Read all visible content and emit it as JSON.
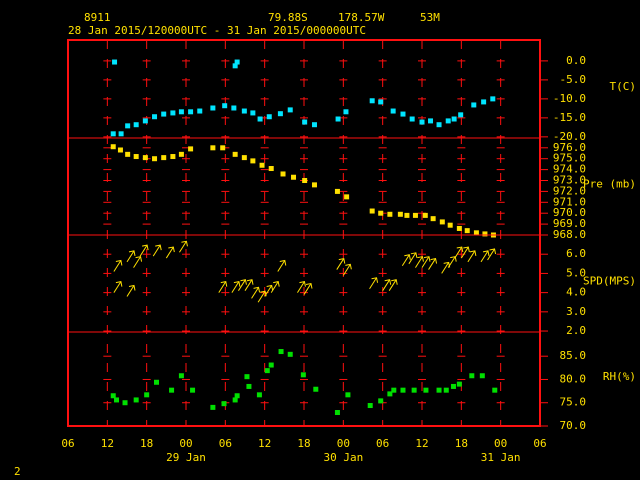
{
  "header": {
    "station": "8911",
    "latitude": "79.88S",
    "longitude": "178.57W",
    "elevation": "53M",
    "period": "28 Jan 2015/120000UTC - 31 Jan 2015/000000UTC",
    "page": "2"
  },
  "x_axis": {
    "xlim": [
      6,
      78
    ],
    "xticks": [
      {
        "value": 6,
        "label": "06"
      },
      12,
      18,
      {
        "value": 24,
        "label": "00"
      },
      {
        "value": 30,
        "label": "06"
      },
      {
        "value": 36,
        "label": "12"
      },
      {
        "value": 42,
        "label": "18"
      },
      {
        "value": 48,
        "label": "00"
      },
      {
        "value": 54,
        "label": "06"
      },
      {
        "value": 60,
        "label": "12"
      },
      {
        "value": 66,
        "label": "18"
      },
      {
        "value": 72,
        "label": "00"
      },
      {
        "value": 78,
        "label": "06"
      }
    ],
    "date_labels": [
      {
        "value": 24,
        "label": "29 Jan"
      },
      {
        "value": 48,
        "label": "30 Jan"
      },
      {
        "value": 72,
        "label": "31 Jan"
      }
    ]
  },
  "chart_data": [
    {
      "type": "scatter",
      "marker": "square",
      "color": "#00e5ff",
      "y_label": "T(C)",
      "ylim": [
        -20.3,
        5.5
      ],
      "yticks": [
        {
          "value": 0,
          "label": "0.0"
        },
        {
          "value": -5,
          "label": "-5.0"
        },
        {
          "value": -10,
          "label": "-10.0"
        },
        {
          "value": -15,
          "label": "-15.0"
        },
        {
          "value": -20,
          "label": "-20.0"
        }
      ],
      "x": [
        12.9,
        13.1,
        14.1,
        15.1,
        16.4,
        17.8,
        19.2,
        20.6,
        22.0,
        23.3,
        24.7,
        26.1,
        28.1,
        29.9,
        31.3,
        31.5,
        31.8,
        32.9,
        34.2,
        35.3,
        36.7,
        38.4,
        39.9,
        42.1,
        43.6,
        47.2,
        48.4,
        52.4,
        53.7,
        55.6,
        57.1,
        58.5,
        60.0,
        61.3,
        62.6,
        64.0,
        64.9,
        65.9,
        67.9,
        69.4,
        70.8
      ],
      "values": [
        -19.2,
        -0.3,
        -19.2,
        -17.1,
        -16.8,
        -15.8,
        -14.7,
        -14.0,
        -13.7,
        -13.4,
        -13.4,
        -13.2,
        -12.4,
        -11.8,
        -12.4,
        -1.3,
        -0.3,
        -13.2,
        -13.7,
        -15.3,
        -14.7,
        -13.9,
        -12.9,
        -16.1,
        -16.8,
        -15.3,
        -13.4,
        -10.5,
        -10.8,
        -13.2,
        -14.0,
        -15.3,
        -16.1,
        -15.8,
        -16.8,
        -15.8,
        -15.3,
        -14.2,
        -11.6,
        -10.8,
        -10.0
      ]
    },
    {
      "type": "scatter",
      "marker": "square",
      "color": "#ffe000",
      "y_label": "Pre (mb)",
      "ylim": [
        968.0,
        976.9
      ],
      "yticks": [
        {
          "value": 976,
          "label": "976.0"
        },
        {
          "value": 975,
          "label": "975.0"
        },
        {
          "value": 974,
          "label": "974.0"
        },
        {
          "value": 973,
          "label": "973.0"
        },
        {
          "value": 972,
          "label": "972.0"
        },
        {
          "value": 971,
          "label": "971.0"
        },
        {
          "value": 970,
          "label": "970.0"
        },
        {
          "value": 969,
          "label": "969.0"
        },
        {
          "value": 968,
          "label": "968.0"
        }
      ],
      "x": [
        12.9,
        14.0,
        15.1,
        16.4,
        17.8,
        19.2,
        20.6,
        22.0,
        23.3,
        24.7,
        28.1,
        29.6,
        31.5,
        32.9,
        34.2,
        35.6,
        37.0,
        38.8,
        40.4,
        42.1,
        43.6,
        47.1,
        48.5,
        52.4,
        53.7,
        55.1,
        56.7,
        57.7,
        59.0,
        60.5,
        61.7,
        63.1,
        64.3,
        65.7,
        66.9,
        68.3,
        69.6,
        70.9
      ],
      "values": [
        976.1,
        975.8,
        975.4,
        975.2,
        975.1,
        975.0,
        975.1,
        975.2,
        975.4,
        975.9,
        976.0,
        976.0,
        975.4,
        975.1,
        974.8,
        974.4,
        974.1,
        973.6,
        973.3,
        973.0,
        972.6,
        972.0,
        971.5,
        970.2,
        970.0,
        969.9,
        969.9,
        969.8,
        969.8,
        969.8,
        969.5,
        969.2,
        968.9,
        968.6,
        968.4,
        968.2,
        968.1,
        968.0
      ]
    },
    {
      "type": "scatter",
      "marker": "arrow",
      "color": "#ffe000",
      "y_label": "SPD(MPS)",
      "ylim": [
        1.95,
        7.0
      ],
      "yticks": [
        {
          "value": 6,
          "label": "6.0"
        },
        {
          "value": 5,
          "label": "5.0"
        },
        {
          "value": 4,
          "label": "4.0"
        },
        {
          "value": 3,
          "label": "3.0"
        },
        {
          "value": 2,
          "label": "2.0"
        }
      ],
      "x": [
        13,
        13,
        15,
        15,
        16,
        17,
        19,
        21,
        23,
        29,
        31,
        32,
        33,
        34,
        35,
        36,
        37,
        38,
        41,
        42,
        47,
        48,
        52,
        54,
        55,
        57,
        58,
        59,
        60,
        61,
        63,
        64,
        65,
        66,
        67,
        69,
        70
      ],
      "values": [
        5.1,
        4.0,
        5.6,
        3.8,
        5.3,
        5.9,
        5.9,
        5.8,
        6.1,
        4.0,
        4.0,
        4.1,
        4.1,
        3.7,
        3.5,
        3.8,
        4.0,
        5.1,
        4.0,
        3.9,
        5.2,
        4.9,
        4.2,
        4.1,
        4.1,
        5.4,
        5.5,
        5.3,
        5.3,
        5.2,
        5.0,
        5.3,
        5.8,
        5.8,
        5.6,
        5.6,
        5.7
      ]
    },
    {
      "type": "scatter",
      "marker": "square",
      "color": "#00e000",
      "y_label": "RH(%)",
      "ylim": [
        70.0,
        90.2
      ],
      "yticks": [
        {
          "value": 85,
          "label": "85.0"
        },
        {
          "value": 80,
          "label": "80.0"
        },
        {
          "value": 75,
          "label": "75.0"
        },
        {
          "value": 70,
          "label": "70.0"
        }
      ],
      "x": [
        12.9,
        13.4,
        14.7,
        16.4,
        18.0,
        19.5,
        21.8,
        23.3,
        25.0,
        28.1,
        29.8,
        31.5,
        31.8,
        33.3,
        33.6,
        35.2,
        36.4,
        37.0,
        38.5,
        39.9,
        41.9,
        43.8,
        47.1,
        48.7,
        52.1,
        53.7,
        55.1,
        55.7,
        57.1,
        58.8,
        60.6,
        62.6,
        63.7,
        64.8,
        65.7,
        67.6,
        69.2,
        71.1
      ],
      "values": [
        76.5,
        75.6,
        75.0,
        75.6,
        76.7,
        79.4,
        77.7,
        80.8,
        77.7,
        74.0,
        74.8,
        75.6,
        76.5,
        80.6,
        78.5,
        76.7,
        81.9,
        83.1,
        86.0,
        85.4,
        81.0,
        77.9,
        72.9,
        76.7,
        74.4,
        75.4,
        76.9,
        77.7,
        77.7,
        77.7,
        77.7,
        77.7,
        77.7,
        78.5,
        79.0,
        80.8,
        80.8,
        77.7
      ]
    }
  ]
}
